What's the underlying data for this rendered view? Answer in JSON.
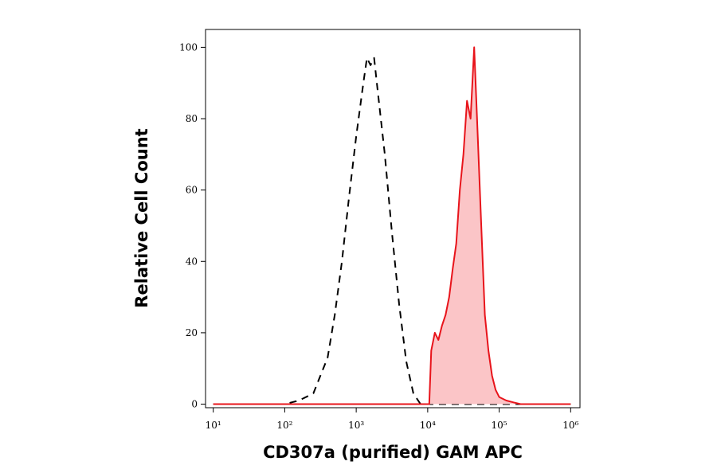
{
  "chart_data": {
    "type": "line",
    "xlabel": "CD307a (purified) GAM APC",
    "ylabel": "Relative Cell Count",
    "xscale": "log",
    "xlim": [
      7.8,
      1350000
    ],
    "ylim": [
      -1,
      105
    ],
    "xticks": [
      {
        "value": 10,
        "label": "10¹"
      },
      {
        "value": 100,
        "label": "10²"
      },
      {
        "value": 1000,
        "label": "10³"
      },
      {
        "value": 10000,
        "label": "10⁴"
      },
      {
        "value": 100000,
        "label": "10⁵"
      },
      {
        "value": 1000000,
        "label": "10⁶"
      }
    ],
    "yticks": [
      0,
      20,
      40,
      60,
      80,
      100
    ],
    "series": [
      {
        "color": "#000000",
        "dash": true,
        "fill": false,
        "x": [
          10,
          100,
          158,
          251,
          316,
          398,
          501,
          631,
          794,
          1000,
          1259,
          1413,
          1585,
          1778,
          1995,
          2512,
          3162,
          3981,
          5012,
          6310,
          7943,
          1000000
        ],
        "values": [
          0,
          0,
          1,
          3,
          8,
          13,
          25,
          40,
          58,
          75,
          90,
          97,
          95,
          97,
          88,
          70,
          48,
          28,
          12,
          3,
          0,
          0
        ]
      },
      {
        "color": "#e8141b",
        "dash": false,
        "fill": "#fbc5c7",
        "x": [
          10,
          10000,
          10500,
          11220,
          12589,
          14125,
          15849,
          17783,
          19953,
          22387,
          25119,
          28184,
          31623,
          35481,
          39811,
          44668,
          50119,
          56234,
          63096,
          70795,
          79433,
          89125,
          100000,
          125893,
          158489,
          199526,
          1000000
        ],
        "values": [
          0,
          0,
          0,
          15,
          20,
          18,
          22,
          25,
          30,
          38,
          45,
          60,
          70,
          85,
          80,
          100,
          75,
          50,
          25,
          15,
          8,
          4,
          2,
          1,
          0.5,
          0,
          0
        ]
      }
    ]
  }
}
